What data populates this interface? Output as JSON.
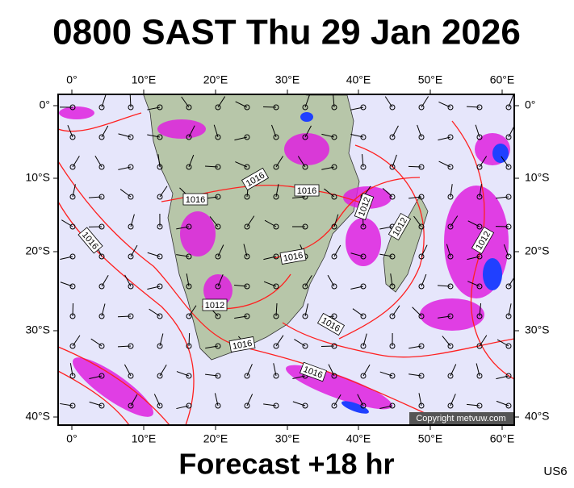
{
  "header": {
    "title": "0800 SAST Thu 29 Jan 2026"
  },
  "map": {
    "lon_labels": [
      "0°",
      "10°E",
      "20°E",
      "30°E",
      "40°E",
      "50°E",
      "60°E"
    ],
    "lat_labels": [
      "0°",
      "10°S",
      "20°S",
      "30°S",
      "40°S"
    ],
    "isobar_labels": [
      "1016",
      "1016",
      "1016",
      "1016",
      "1012",
      "1012",
      "1012",
      "1016",
      "1012",
      "1016",
      "1016",
      "1016"
    ],
    "copyright": "Copyright metvuw.com"
  },
  "footer": {
    "forecast": "Forecast +18 hr",
    "code": "US6"
  }
}
